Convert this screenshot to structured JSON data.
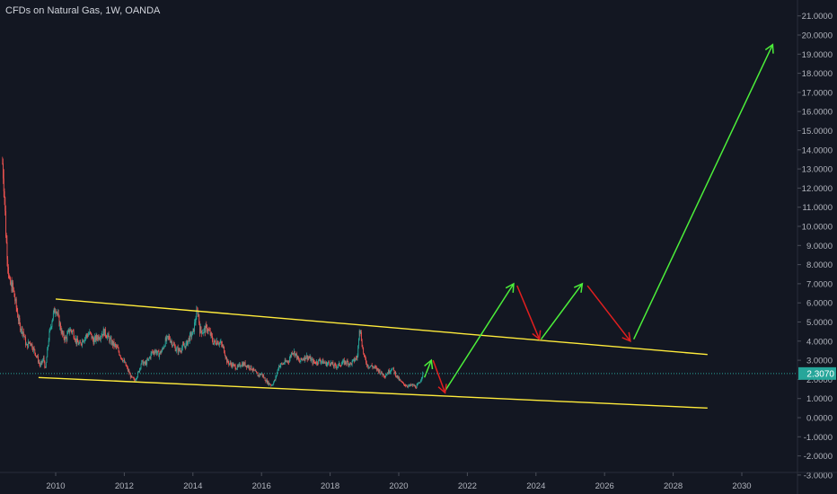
{
  "header": {
    "title": "CFDs on Natural Gas, 1W, OANDA"
  },
  "colors": {
    "background": "#131722",
    "axis_text": "#b2b5be",
    "candle_up": "#26a69a",
    "candle_down": "#ef5350",
    "channel": "#ffeb3b",
    "arrow_up": "#4cef3a",
    "arrow_down": "#e01f1f",
    "current_price_bg": "#26a69a",
    "current_price_line": "#26a69a"
  },
  "chart_data": {
    "type": "candlestick",
    "title": "CFDs on Natural Gas, 1W, OANDA",
    "x_ticks": [
      "2010",
      "2012",
      "2014",
      "2016",
      "2018",
      "2020",
      "2022",
      "2024",
      "2026",
      "2028",
      "2030"
    ],
    "x_tick_values": [
      2010,
      2012,
      2014,
      2016,
      2018,
      2020,
      2022,
      2024,
      2026,
      2028,
      2030
    ],
    "y_ticks": [
      "-3.0000",
      "-2.0000",
      "-1.0000",
      "0.0000",
      "1.0000",
      "2.0000",
      "3.0000",
      "4.0000",
      "5.0000",
      "6.0000",
      "7.0000",
      "8.0000",
      "9.0000",
      "10.0000",
      "11.0000",
      "12.0000",
      "13.0000",
      "14.0000",
      "15.0000",
      "16.0000",
      "17.0000",
      "18.0000",
      "19.0000",
      "20.0000",
      "21.0000"
    ],
    "y_tick_values": [
      -3,
      -2,
      -1,
      0,
      1,
      2,
      3,
      4,
      5,
      6,
      7,
      8,
      9,
      10,
      11,
      12,
      13,
      14,
      15,
      16,
      17,
      18,
      19,
      20,
      21
    ],
    "xlim": [
      2008.4,
      2031.2
    ],
    "ylim": [
      -3.0,
      21.6
    ],
    "grid": false,
    "current_price": {
      "value": 2.307,
      "label": "2.3070"
    },
    "price_path": [
      [
        2008.45,
        13.3
      ],
      [
        2008.5,
        12.0
      ],
      [
        2008.55,
        9.5
      ],
      [
        2008.65,
        7.0
      ],
      [
        2008.75,
        6.8
      ],
      [
        2008.85,
        5.8
      ],
      [
        2008.95,
        4.8
      ],
      [
        2009.05,
        4.5
      ],
      [
        2009.15,
        3.7
      ],
      [
        2009.25,
        4.0
      ],
      [
        2009.35,
        3.6
      ],
      [
        2009.45,
        3.2
      ],
      [
        2009.55,
        2.7
      ],
      [
        2009.65,
        3.1
      ],
      [
        2009.7,
        2.5
      ],
      [
        2009.8,
        4.2
      ],
      [
        2009.9,
        5.2
      ],
      [
        2010.0,
        5.8
      ],
      [
        2010.1,
        5.0
      ],
      [
        2010.2,
        4.3
      ],
      [
        2010.3,
        4.1
      ],
      [
        2010.4,
        4.6
      ],
      [
        2010.5,
        4.5
      ],
      [
        2010.6,
        4.0
      ],
      [
        2010.7,
        3.8
      ],
      [
        2010.8,
        4.1
      ],
      [
        2010.9,
        4.3
      ],
      [
        2011.0,
        4.4
      ],
      [
        2011.1,
        4.0
      ],
      [
        2011.2,
        4.2
      ],
      [
        2011.3,
        4.3
      ],
      [
        2011.4,
        4.5
      ],
      [
        2011.5,
        4.3
      ],
      [
        2011.6,
        4.0
      ],
      [
        2011.7,
        3.8
      ],
      [
        2011.8,
        3.6
      ],
      [
        2011.9,
        3.2
      ],
      [
        2012.0,
        2.9
      ],
      [
        2012.1,
        2.5
      ],
      [
        2012.2,
        2.1
      ],
      [
        2012.3,
        1.95
      ],
      [
        2012.4,
        2.3
      ],
      [
        2012.5,
        2.9
      ],
      [
        2012.6,
        2.8
      ],
      [
        2012.7,
        3.0
      ],
      [
        2012.8,
        3.4
      ],
      [
        2012.9,
        3.5
      ],
      [
        2013.0,
        3.3
      ],
      [
        2013.1,
        3.5
      ],
      [
        2013.2,
        4.0
      ],
      [
        2013.3,
        4.2
      ],
      [
        2013.4,
        3.9
      ],
      [
        2013.5,
        3.6
      ],
      [
        2013.6,
        3.5
      ],
      [
        2013.7,
        3.7
      ],
      [
        2013.8,
        3.8
      ],
      [
        2013.9,
        4.2
      ],
      [
        2014.0,
        4.4
      ],
      [
        2014.1,
        5.4
      ],
      [
        2014.15,
        5.6
      ],
      [
        2014.2,
        4.6
      ],
      [
        2014.3,
        4.5
      ],
      [
        2014.4,
        4.7
      ],
      [
        2014.5,
        4.4
      ],
      [
        2014.6,
        3.9
      ],
      [
        2014.7,
        4.0
      ],
      [
        2014.8,
        3.9
      ],
      [
        2014.9,
        3.6
      ],
      [
        2015.0,
        2.9
      ],
      [
        2015.1,
        2.8
      ],
      [
        2015.2,
        2.7
      ],
      [
        2015.3,
        2.6
      ],
      [
        2015.4,
        2.8
      ],
      [
        2015.5,
        2.8
      ],
      [
        2015.6,
        2.7
      ],
      [
        2015.7,
        2.6
      ],
      [
        2015.8,
        2.4
      ],
      [
        2015.9,
        2.2
      ],
      [
        2016.0,
        2.3
      ],
      [
        2016.1,
        2.0
      ],
      [
        2016.2,
        1.8
      ],
      [
        2016.3,
        1.7
      ],
      [
        2016.4,
        2.0
      ],
      [
        2016.5,
        2.7
      ],
      [
        2016.6,
        2.8
      ],
      [
        2016.7,
        2.9
      ],
      [
        2016.8,
        3.0
      ],
      [
        2016.9,
        3.5
      ],
      [
        2017.0,
        3.3
      ],
      [
        2017.1,
        2.9
      ],
      [
        2017.2,
        3.1
      ],
      [
        2017.3,
        3.2
      ],
      [
        2017.4,
        3.1
      ],
      [
        2017.5,
        2.9
      ],
      [
        2017.6,
        2.9
      ],
      [
        2017.7,
        3.0
      ],
      [
        2017.8,
        2.9
      ],
      [
        2017.9,
        2.8
      ],
      [
        2018.0,
        2.9
      ],
      [
        2018.1,
        2.7
      ],
      [
        2018.2,
        2.7
      ],
      [
        2018.3,
        2.8
      ],
      [
        2018.4,
        2.9
      ],
      [
        2018.5,
        2.9
      ],
      [
        2018.6,
        2.8
      ],
      [
        2018.7,
        3.0
      ],
      [
        2018.8,
        3.2
      ],
      [
        2018.85,
        4.8
      ],
      [
        2018.9,
        4.3
      ],
      [
        2018.95,
        3.6
      ],
      [
        2019.0,
        3.1
      ],
      [
        2019.1,
        2.7
      ],
      [
        2019.2,
        2.7
      ],
      [
        2019.3,
        2.6
      ],
      [
        2019.4,
        2.5
      ],
      [
        2019.5,
        2.3
      ],
      [
        2019.6,
        2.2
      ],
      [
        2019.7,
        2.4
      ],
      [
        2019.8,
        2.6
      ],
      [
        2019.9,
        2.3
      ],
      [
        2020.0,
        2.0
      ],
      [
        2020.1,
        1.8
      ],
      [
        2020.2,
        1.7
      ],
      [
        2020.3,
        1.65
      ],
      [
        2020.4,
        1.7
      ],
      [
        2020.5,
        1.6
      ],
      [
        2020.6,
        1.8
      ],
      [
        2020.7,
        2.3
      ]
    ],
    "drawings": {
      "channel_upper": [
        [
          2010.0,
          6.2
        ],
        [
          2029.0,
          3.3
        ]
      ],
      "channel_lower": [
        [
          2009.5,
          2.1
        ],
        [
          2029.0,
          0.5
        ]
      ],
      "arrows_green": [
        [
          [
            2020.75,
            2.1
          ],
          [
            2020.95,
            3.0
          ]
        ],
        [
          [
            2021.35,
            1.4
          ],
          [
            2023.35,
            7.0
          ]
        ],
        [
          [
            2024.15,
            4.1
          ],
          [
            2025.35,
            7.0
          ]
        ],
        [
          [
            2026.85,
            4.1
          ],
          [
            2030.9,
            19.5
          ]
        ]
      ],
      "arrows_red": [
        [
          [
            2021.0,
            3.0
          ],
          [
            2021.35,
            1.3
          ]
        ],
        [
          [
            2023.45,
            6.9
          ],
          [
            2024.1,
            4.1
          ]
        ],
        [
          [
            2025.5,
            6.9
          ],
          [
            2026.75,
            4.0
          ]
        ]
      ]
    }
  }
}
